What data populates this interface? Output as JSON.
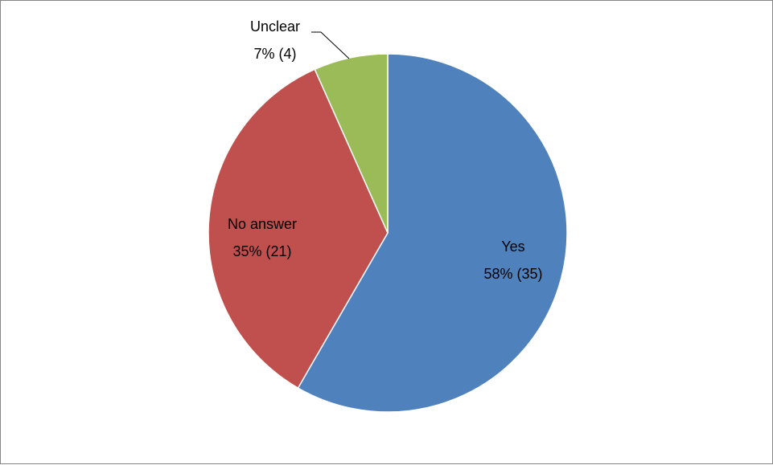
{
  "chart_data": {
    "type": "pie",
    "title": "",
    "slices": [
      {
        "name": "Yes",
        "value": 35,
        "percent_label": "58% (35)",
        "color": "#4F81BD"
      },
      {
        "name": "No answer",
        "value": 21,
        "percent_label": "35% (21)",
        "color": "#C0504D"
      },
      {
        "name": "Unclear",
        "value": 4,
        "percent_label": "7% (4)",
        "color": "#9BBB59"
      }
    ],
    "start_angle": "12 o'clock",
    "direction": "clockwise",
    "legend": "none",
    "slice_edge_color": "#FFFFFF"
  }
}
